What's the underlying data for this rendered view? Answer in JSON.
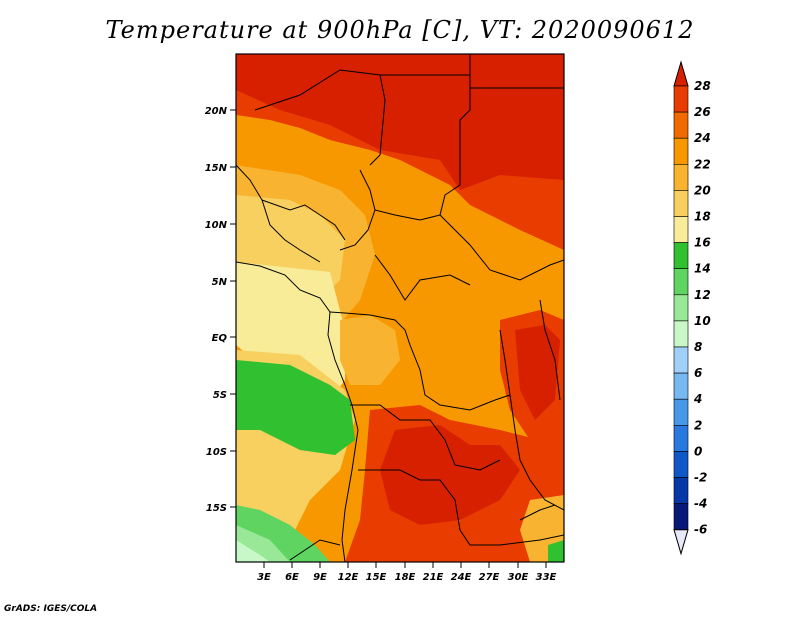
{
  "title": "Temperature at 900hPa [C], VT: 2020090612",
  "credit": "GrADS: IGES/COLA",
  "lat_labels": [
    "20N",
    "15N",
    "10N",
    "5N",
    "EQ",
    "5S",
    "10S",
    "15S"
  ],
  "lon_labels": [
    "3E",
    "6E",
    "9E",
    "12E",
    "15E",
    "18E",
    "21E",
    "24E",
    "27E",
    "30E",
    "33E"
  ],
  "colorbar": {
    "labels": [
      "28",
      "26",
      "24",
      "22",
      "20",
      "18",
      "16",
      "14",
      "12",
      "10",
      "8",
      "6",
      "4",
      "2",
      "0",
      "-2",
      "-4",
      "-6"
    ],
    "colors": [
      "#d62000",
      "#e83c00",
      "#f06a00",
      "#f89800",
      "#f8b430",
      "#f8d060",
      "#f8ec98",
      "#30c030",
      "#60d460",
      "#98e898",
      "#c8f8c8",
      "#a0d0f8",
      "#78b8f0",
      "#4898e8",
      "#2878e0",
      "#1058c8",
      "#0838a8",
      "#081878",
      "#100050"
    ]
  }
}
